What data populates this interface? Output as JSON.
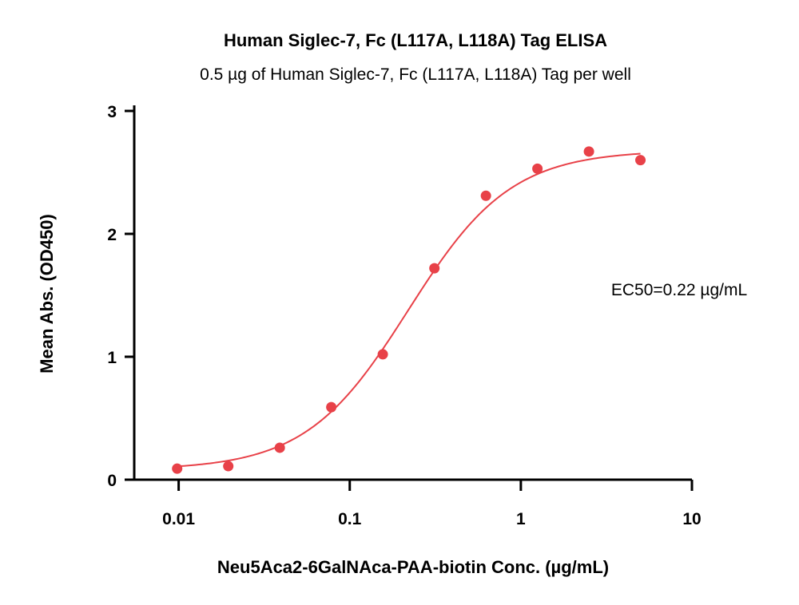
{
  "chart_data": {
    "type": "scatter",
    "title": "Human Siglec-7, Fc (L117A, L118A) Tag ELISA",
    "subtitle": "0.5 µg of Human Siglec-7, Fc (L117A, L118A) Tag per well",
    "xlabel": "Neu5Aca2-6GalNAca-PAA-biotin Conc. (µg/mL)",
    "ylabel": "Mean Abs. (OD450)",
    "x_scale": "log",
    "xlim": [
      0.0055,
      10
    ],
    "ylim": [
      0,
      3
    ],
    "x_ticks": [
      0.01,
      0.1,
      1,
      10
    ],
    "x_tick_labels": [
      "0.01",
      "0.1",
      "1",
      "10"
    ],
    "y_ticks": [
      0,
      1,
      2,
      3
    ],
    "y_tick_labels": [
      "0",
      "1",
      "2",
      "3"
    ],
    "grid": false,
    "series": [
      {
        "x": [
          0.0098,
          0.0195,
          0.039,
          0.078,
          0.156,
          0.3125,
          0.625,
          1.25,
          2.5,
          5
        ],
        "y": [
          0.09,
          0.11,
          0.26,
          0.59,
          1.02,
          1.72,
          2.31,
          2.53,
          2.67,
          2.6
        ],
        "color": "#e84148"
      }
    ],
    "fit_curve": {
      "model": "4PL",
      "bottom": 0.08,
      "top": 2.68,
      "ec50": 0.22,
      "hill": 1.45,
      "x_range": [
        0.0098,
        5
      ],
      "color": "#e84148"
    },
    "annotations": [
      {
        "text": "EC50=0.22 µg/mL"
      }
    ]
  }
}
